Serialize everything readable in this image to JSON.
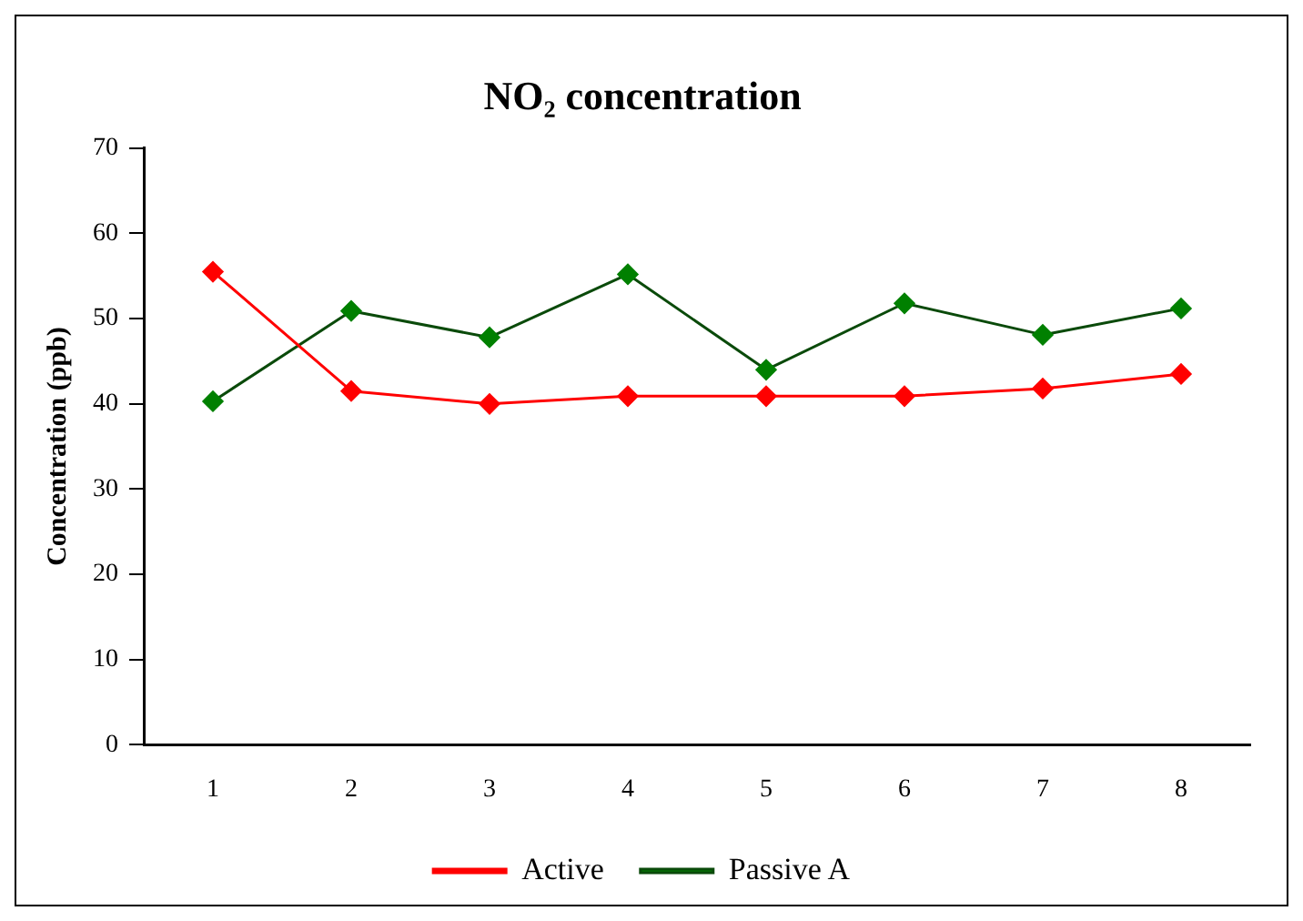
{
  "chart_data": {
    "type": "line",
    "title": "NO₂ concentration",
    "ylabel": "Concentration (ppb)",
    "categories": [
      "1",
      "2",
      "3",
      "4",
      "5",
      "6",
      "7",
      "8"
    ],
    "series": [
      {
        "name": "Active",
        "color": "#ff0000",
        "values": [
          55.5,
          41.5,
          40,
          40.9,
          40.9,
          40.9,
          41.8,
          43.5
        ]
      },
      {
        "name": "Passive A",
        "color": "#008000",
        "values": [
          40.3,
          50.9,
          47.8,
          55.2,
          44,
          51.8,
          48.1,
          51.2
        ]
      }
    ],
    "ylim": [
      0,
      70
    ],
    "yticks": [
      0,
      10,
      20,
      30,
      40,
      50,
      60,
      70
    ],
    "grid": false,
    "legend": "bottom",
    "marker": "diamond",
    "line_style": "solid"
  }
}
